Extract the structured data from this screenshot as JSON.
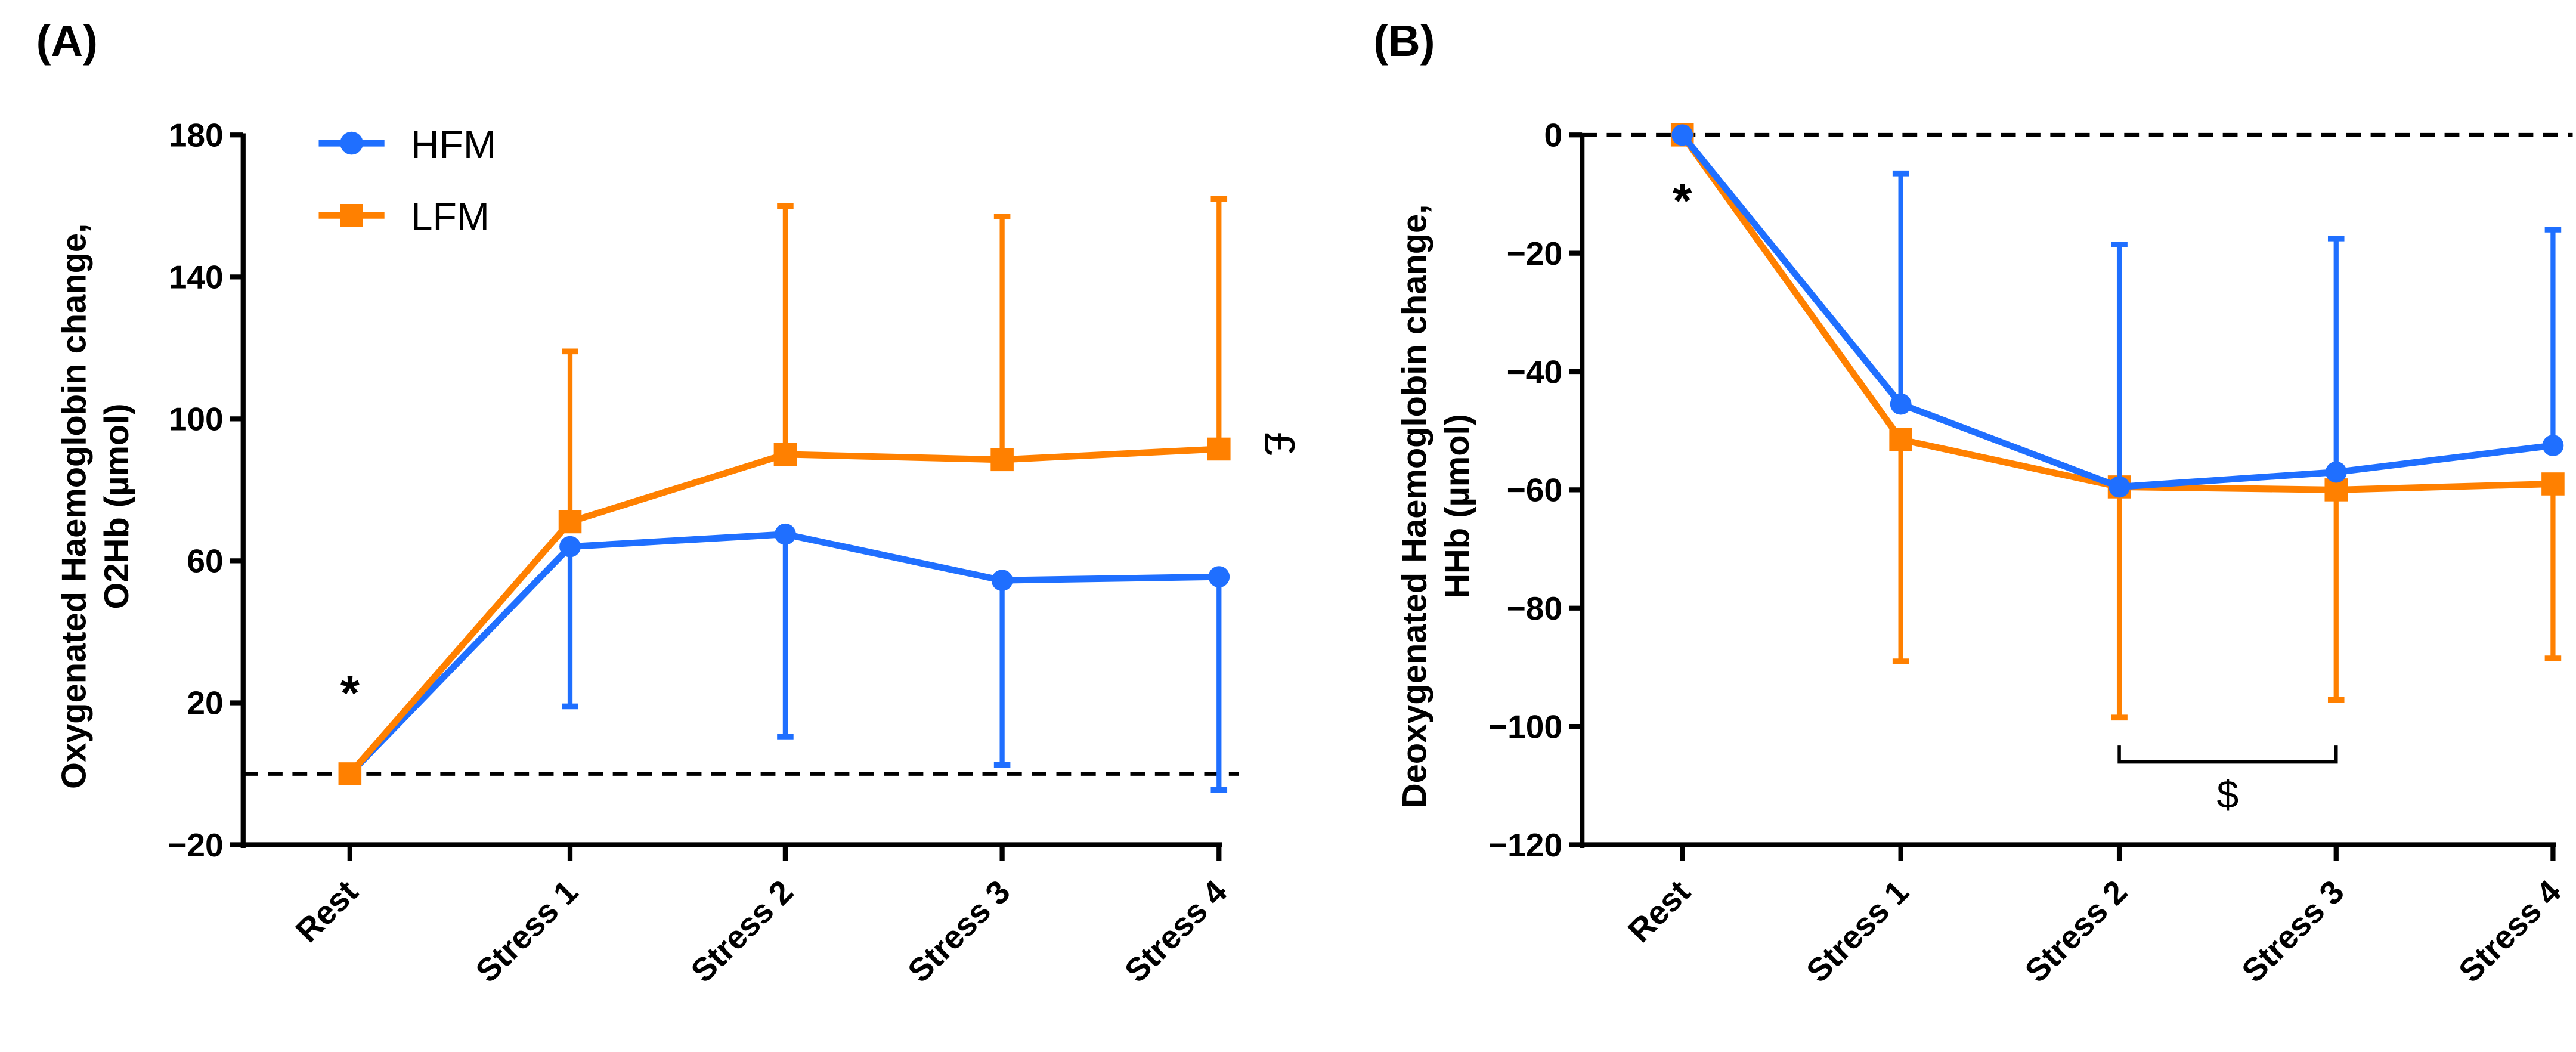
{
  "colors": {
    "HFM": "#1f6fff",
    "LFM": "#ff8000"
  },
  "chart_data": [
    {
      "type": "line",
      "panel_label": "(A)",
      "categories": [
        "Rest",
        "Stress 1",
        "Stress 2",
        "Stress 3",
        "Stress 4"
      ],
      "ylabel_line1": "Oxygenated Haemoglobin change,",
      "ylabel_line2": "O2Hb (µmol)",
      "ylim": [
        -20,
        180
      ],
      "yticks": [
        "-20",
        "20",
        "60",
        "100",
        "140",
        "180"
      ],
      "yticks_values": [
        -20,
        20,
        60,
        100,
        140,
        180
      ],
      "reference_line": 0,
      "legend": [
        "HFM",
        "LFM"
      ],
      "legend_position": "top-left",
      "series": [
        {
          "name": "HFM",
          "marker": "circle",
          "values": [
            0,
            64,
            67.5,
            54.5,
            55.5
          ],
          "error_end": [
            0,
            19,
            10.5,
            2.5,
            -4.5
          ]
        },
        {
          "name": "LFM",
          "marker": "square",
          "values": [
            0,
            71,
            90,
            88.5,
            91.5
          ],
          "error_end": [
            0,
            119,
            160,
            157,
            162
          ]
        }
      ],
      "annotations": [
        {
          "text": "*",
          "category": "Rest"
        },
        {
          "text": "£",
          "category": "Stress 4"
        }
      ]
    },
    {
      "type": "line",
      "panel_label": "(B)",
      "categories": [
        "Rest",
        "Stress 1",
        "Stress 2",
        "Stress 3",
        "Stress 4"
      ],
      "ylabel_line1": "Deoxygenated Haemoglobin change,",
      "ylabel_line2": "HHb (µmol)",
      "ylim": [
        -120,
        0
      ],
      "yticks": [
        "-120",
        "-100",
        "-80",
        "-60",
        "-40",
        "-20",
        "0"
      ],
      "yticks_values": [
        -120,
        -100,
        -80,
        -60,
        -40,
        -20,
        0
      ],
      "reference_line": 0,
      "series": [
        {
          "name": "HFM",
          "marker": "circle",
          "values": [
            0,
            -45.5,
            -59.5,
            -57,
            -52.5
          ],
          "error_end": [
            0,
            -6.5,
            -18.5,
            -17.5,
            -16
          ]
        },
        {
          "name": "LFM",
          "marker": "square",
          "values": [
            0,
            -51.5,
            -59.5,
            -60,
            -59
          ],
          "error_end": [
            0,
            -89,
            -98.5,
            -95.5,
            -88.5
          ]
        }
      ],
      "annotations": [
        {
          "text": "*",
          "category": "Rest"
        },
        {
          "text": "$",
          "category": "Stress 2 - Stress 3"
        }
      ]
    }
  ]
}
